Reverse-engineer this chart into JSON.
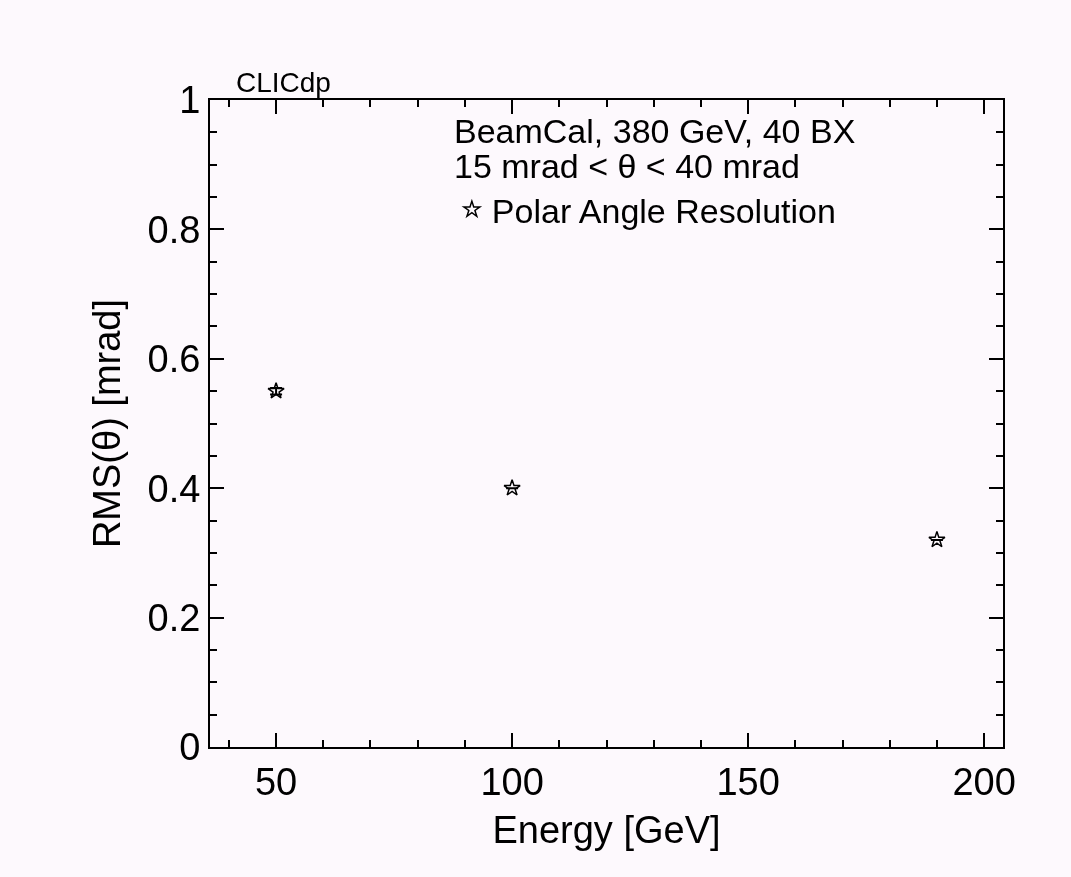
{
  "chart_data": {
    "type": "scatter",
    "xlabel": "Energy [GeV]",
    "ylabel": "RMS(θ) [mrad]",
    "annotations": [
      "CLICdp",
      "BeamCal, 380 GeV, 40 BX",
      "15 mrad < θ < 40 mrad"
    ],
    "series": [
      {
        "name": "Polar Angle Resolution",
        "color": "#000000",
        "x": [
          50,
          100,
          190
        ],
        "values": [
          0.55,
          0.4,
          0.32
        ],
        "errors": [
          0.005,
          null,
          null
        ]
      }
    ],
    "xlim": [
      36,
      204
    ],
    "xticks": [
      50,
      100,
      150,
      200
    ],
    "ylim": [
      0,
      1
    ],
    "yticks": [
      0,
      0.2,
      0.4,
      0.6,
      0.8,
      1
    ],
    "marker": "star",
    "legend": "top right",
    "grid": false
  }
}
